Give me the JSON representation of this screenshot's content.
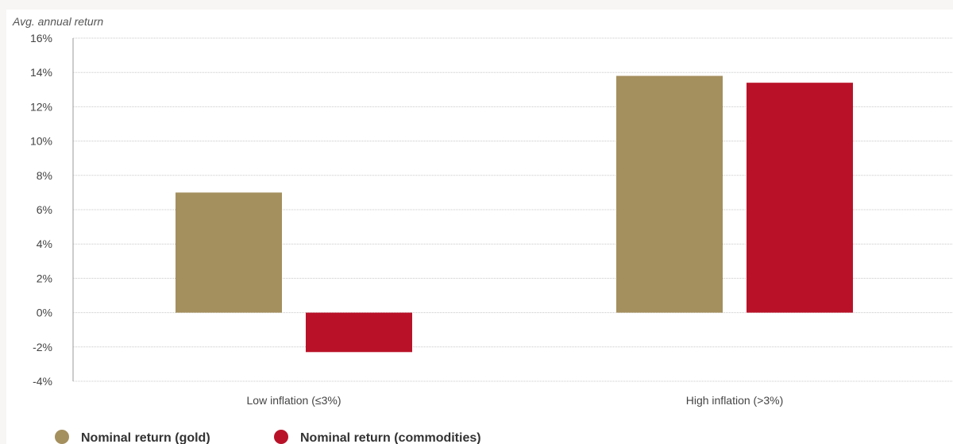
{
  "chart_data": {
    "type": "bar",
    "ylabel": "Avg. annual return",
    "xlabel": "",
    "categories": [
      "Low inflation (≤3%)",
      "High inflation (>3%)"
    ],
    "ylim": [
      -4,
      16
    ],
    "yticks": [
      -4,
      -2,
      0,
      2,
      4,
      6,
      8,
      10,
      12,
      14,
      16
    ],
    "ytick_labels": [
      "-4%",
      "-2%",
      "0%",
      "2%",
      "4%",
      "6%",
      "8%",
      "10%",
      "12%",
      "14%",
      "16%"
    ],
    "grid": true,
    "legend_position": "bottom-left",
    "series": [
      {
        "name": "Nominal return (gold)",
        "color": "#a48f5e",
        "values": [
          7.0,
          13.8
        ]
      },
      {
        "name": "Nominal return (commodities)",
        "color": "#b91228",
        "values": [
          -2.3,
          13.4
        ]
      }
    ]
  },
  "colors": {
    "grid": "#c8c8c8",
    "axis": "#999999",
    "background": "#ffffff"
  }
}
